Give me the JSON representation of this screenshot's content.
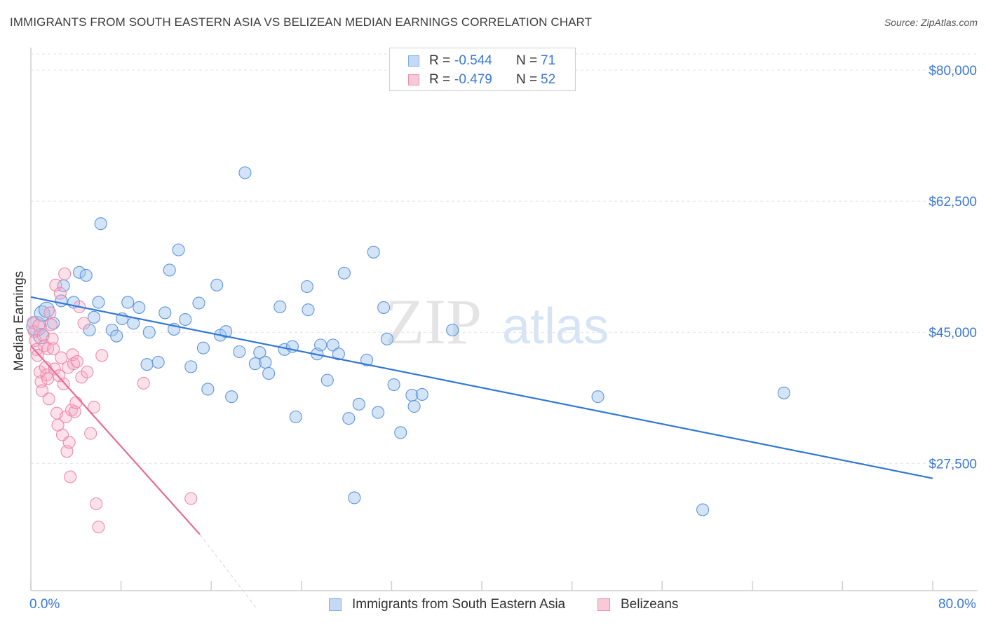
{
  "title": "IMMIGRANTS FROM SOUTH EASTERN ASIA VS BELIZEAN MEDIAN EARNINGS CORRELATION CHART",
  "source": "Source: ZipAtlas.com",
  "watermark": {
    "zip": "ZIP",
    "atlas": "atlas"
  },
  "legend": {
    "rows": [
      {
        "r_label": "R =",
        "r_value": "-0.544",
        "n_label": "N =",
        "n_value": "71",
        "color": "#7eaee8",
        "fill": "#c5d9f4"
      },
      {
        "r_label": "R =",
        "r_value": "-0.479",
        "n_label": "N =",
        "n_value": "52",
        "color": "#ee8fae",
        "fill": "#f9c9d8"
      }
    ]
  },
  "bottom_legend": [
    {
      "label": "Immigrants from South Eastern Asia",
      "color": "#7eaee8",
      "fill": "#c5d9f4"
    },
    {
      "label": "Belizeans",
      "color": "#ee8fae",
      "fill": "#f9c9d8"
    }
  ],
  "x_axis": {
    "min_label": "0.0%",
    "max_label": "80.0%"
  },
  "chart_data": {
    "type": "scatter",
    "title": "IMMIGRANTS FROM SOUTH EASTERN ASIA VS BELIZEAN MEDIAN EARNINGS CORRELATION CHART",
    "xlabel": "",
    "ylabel": "Median Earnings",
    "xlim": [
      0,
      80
    ],
    "ylim": [
      10500,
      83000
    ],
    "y_ticks": [
      {
        "value": 27500,
        "label": "$27,500"
      },
      {
        "value": 45000,
        "label": "$45,000"
      },
      {
        "value": 62500,
        "label": "$62,500"
      },
      {
        "value": 80000,
        "label": "$80,000"
      }
    ],
    "x_tick_count": 11,
    "grid": true,
    "colors": {
      "blue": "#3378d3",
      "pink": "#e56d97",
      "axis": "#cfcfcf",
      "tick_text": "#3a78d4"
    },
    "series": [
      {
        "name": "Immigrants from South Eastern Asia",
        "color": "#3378d3",
        "trend": {
          "x0": 0,
          "y0": 49700,
          "x1": 80,
          "y1": 25500,
          "dashed_to": null
        },
        "points": [
          [
            0.5,
            45800
          ],
          [
            0.9,
            44500
          ],
          [
            1.0,
            47500
          ],
          [
            1.4,
            48000
          ],
          [
            2.0,
            46200
          ],
          [
            2.7,
            49200
          ],
          [
            2.9,
            51200
          ],
          [
            3.8,
            49000
          ],
          [
            4.3,
            53000
          ],
          [
            4.9,
            52600
          ],
          [
            5.2,
            45300
          ],
          [
            5.6,
            47000
          ],
          [
            6.0,
            49000
          ],
          [
            6.2,
            59500
          ],
          [
            7.2,
            45300
          ],
          [
            7.6,
            44500
          ],
          [
            8.1,
            46800
          ],
          [
            8.6,
            49000
          ],
          [
            9.1,
            46200
          ],
          [
            9.6,
            48300
          ],
          [
            10.3,
            40700
          ],
          [
            10.5,
            45000
          ],
          [
            11.3,
            41000
          ],
          [
            11.9,
            47600
          ],
          [
            12.3,
            53300
          ],
          [
            12.7,
            45400
          ],
          [
            13.1,
            56000
          ],
          [
            13.7,
            46700
          ],
          [
            14.2,
            40400
          ],
          [
            14.9,
            48900
          ],
          [
            15.3,
            42900
          ],
          [
            15.7,
            37400
          ],
          [
            16.5,
            51300
          ],
          [
            16.8,
            44600
          ],
          [
            17.3,
            45100
          ],
          [
            17.8,
            36400
          ],
          [
            18.5,
            42400
          ],
          [
            19.0,
            66300
          ],
          [
            19.9,
            40800
          ],
          [
            20.3,
            42300
          ],
          [
            20.8,
            41000
          ],
          [
            21.1,
            39500
          ],
          [
            22.1,
            48400
          ],
          [
            22.5,
            42700
          ],
          [
            23.2,
            43100
          ],
          [
            23.5,
            33700
          ],
          [
            24.5,
            51100
          ],
          [
            24.6,
            48000
          ],
          [
            25.4,
            42100
          ],
          [
            25.7,
            43300
          ],
          [
            26.3,
            38600
          ],
          [
            26.8,
            43300
          ],
          [
            27.3,
            42100
          ],
          [
            27.8,
            52900
          ],
          [
            28.2,
            33500
          ],
          [
            28.7,
            22900
          ],
          [
            29.1,
            35400
          ],
          [
            29.8,
            41300
          ],
          [
            30.4,
            55700
          ],
          [
            30.8,
            34300
          ],
          [
            31.3,
            48300
          ],
          [
            31.6,
            44100
          ],
          [
            32.2,
            38000
          ],
          [
            32.8,
            31600
          ],
          [
            33.8,
            36600
          ],
          [
            34.0,
            35100
          ],
          [
            34.7,
            36700
          ],
          [
            37.4,
            45300
          ],
          [
            50.3,
            36400
          ],
          [
            59.6,
            21300
          ],
          [
            66.8,
            36900
          ]
        ]
      },
      {
        "name": "Belizeans",
        "color": "#e56d97",
        "trend": {
          "x0": 0,
          "y0": 43200,
          "x1": 15.0,
          "y1": 18000,
          "dashed_to": {
            "x": 20.1,
            "y": 8000
          }
        },
        "points": [
          [
            0.2,
            46300
          ],
          [
            0.3,
            45100
          ],
          [
            0.4,
            43900
          ],
          [
            0.5,
            42700
          ],
          [
            0.6,
            41900
          ],
          [
            0.7,
            45900
          ],
          [
            0.8,
            39700
          ],
          [
            0.9,
            38400
          ],
          [
            1.0,
            37200
          ],
          [
            1.1,
            44600
          ],
          [
            1.2,
            43200
          ],
          [
            1.3,
            40300
          ],
          [
            1.4,
            39300
          ],
          [
            1.5,
            42800
          ],
          [
            1.5,
            38800
          ],
          [
            1.6,
            36100
          ],
          [
            1.7,
            47600
          ],
          [
            1.8,
            46000
          ],
          [
            1.9,
            44100
          ],
          [
            2.0,
            42800
          ],
          [
            2.1,
            40100
          ],
          [
            2.2,
            51300
          ],
          [
            2.3,
            34200
          ],
          [
            2.4,
            32600
          ],
          [
            2.5,
            39200
          ],
          [
            2.6,
            50200
          ],
          [
            2.7,
            41600
          ],
          [
            2.8,
            31300
          ],
          [
            2.9,
            38100
          ],
          [
            3.0,
            52800
          ],
          [
            3.1,
            33700
          ],
          [
            3.2,
            29100
          ],
          [
            3.3,
            40300
          ],
          [
            3.4,
            30300
          ],
          [
            3.5,
            25700
          ],
          [
            3.6,
            34600
          ],
          [
            3.7,
            42000
          ],
          [
            3.8,
            40800
          ],
          [
            3.9,
            34400
          ],
          [
            4.0,
            35600
          ],
          [
            4.1,
            41100
          ],
          [
            4.3,
            48400
          ],
          [
            4.5,
            39000
          ],
          [
            4.7,
            46200
          ],
          [
            5.0,
            39700
          ],
          [
            5.3,
            31500
          ],
          [
            5.6,
            35000
          ],
          [
            5.8,
            22100
          ],
          [
            6.0,
            19000
          ],
          [
            6.3,
            41900
          ],
          [
            10.0,
            38200
          ],
          [
            14.2,
            22800
          ]
        ]
      }
    ]
  }
}
